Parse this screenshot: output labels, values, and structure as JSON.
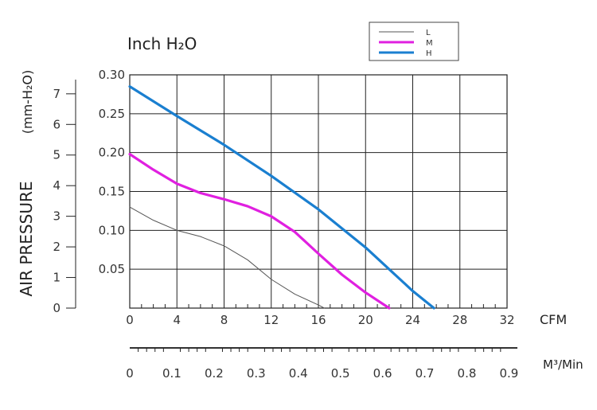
{
  "chart_data": {
    "type": "line",
    "title": "Inch H₂O",
    "y_primary_label": "0.30",
    "xlabel": "CFM",
    "xlim": [
      0,
      32
    ],
    "x_ticks": [
      "0",
      "4",
      "8",
      "12",
      "16",
      "20",
      "24",
      "28",
      "32"
    ],
    "ylim": [
      0,
      0.3
    ],
    "y_ticks": [
      "0.05",
      "0.10",
      "0.15",
      "0.20",
      "0.25",
      "0.30"
    ],
    "y_secondary": {
      "label": "AIR PRESSURE",
      "unit": "(mm-H₂O)",
      "ticks": [
        "0",
        "1",
        "2",
        "3",
        "4",
        "5",
        "6",
        "7"
      ]
    },
    "x_secondary": {
      "unit": "M³/Min",
      "ticks": [
        "0",
        "0.1",
        "0.2",
        "0.3",
        "0.4",
        "0.5",
        "0.6",
        "0.7",
        "0.8",
        "0.9"
      ]
    },
    "legend": {
      "position": "top-right",
      "entries": [
        "L",
        "M",
        "H"
      ]
    },
    "grid": true,
    "series": [
      {
        "name": "L",
        "color": "#555555",
        "points": [
          [
            0,
            0.13
          ],
          [
            2,
            0.113
          ],
          [
            4,
            0.1
          ],
          [
            6,
            0.092
          ],
          [
            8,
            0.08
          ],
          [
            10,
            0.062
          ],
          [
            12,
            0.037
          ],
          [
            14,
            0.018
          ],
          [
            16,
            0.004
          ],
          [
            16.5,
            0.0
          ]
        ]
      },
      {
        "name": "M",
        "color": "#e020e0",
        "points": [
          [
            0,
            0.198
          ],
          [
            2,
            0.178
          ],
          [
            4,
            0.16
          ],
          [
            6,
            0.148
          ],
          [
            8,
            0.14
          ],
          [
            10,
            0.131
          ],
          [
            12,
            0.118
          ],
          [
            14,
            0.098
          ],
          [
            16,
            0.07
          ],
          [
            18,
            0.043
          ],
          [
            20,
            0.02
          ],
          [
            22,
            0.0
          ]
        ]
      },
      {
        "name": "H",
        "color": "#1a7fd0",
        "points": [
          [
            0,
            0.285
          ],
          [
            4,
            0.247
          ],
          [
            8,
            0.21
          ],
          [
            12,
            0.17
          ],
          [
            16,
            0.127
          ],
          [
            20,
            0.078
          ],
          [
            22,
            0.05
          ],
          [
            24,
            0.022
          ],
          [
            25.8,
            0.0
          ]
        ]
      }
    ]
  }
}
